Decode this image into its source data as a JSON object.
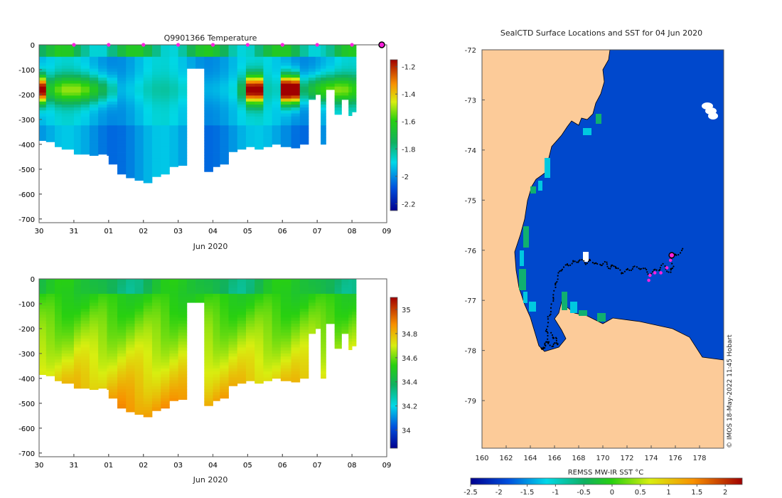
{
  "chart_data": [
    {
      "type": "heatmap",
      "title": "Q9901366  Temperature",
      "xlabel": "Jun 2020",
      "ylabel": "",
      "x_ticks": [
        "30",
        "31",
        "01",
        "02",
        "03",
        "04",
        "05",
        "06",
        "07",
        "08",
        "09"
      ],
      "xlim": [
        0,
        10
      ],
      "y_ticks": [
        0,
        -100,
        -200,
        -300,
        -400,
        -500,
        -600,
        -700
      ],
      "ylim": [
        -715,
        0
      ],
      "profile_times": [
        0.0,
        0.2,
        0.45,
        0.65,
        1.0,
        1.2,
        1.45,
        1.7,
        1.95,
        2.0,
        2.25,
        2.5,
        2.75,
        3.0,
        3.25,
        3.5,
        3.75,
        4.0,
        4.25,
        4.5,
        4.75,
        5.0,
        5.2,
        5.45,
        5.7,
        5.95,
        6.2,
        6.45,
        6.7,
        6.95,
        7.25,
        7.5,
        7.75,
        7.95,
        8.1,
        8.25,
        8.5,
        8.7,
        8.9,
        9.0
      ],
      "profile_max_depths": [
        385,
        390,
        410,
        420,
        440,
        440,
        445,
        440,
        445,
        480,
        520,
        535,
        545,
        555,
        530,
        520,
        490,
        485,
        95,
        95,
        510,
        490,
        480,
        430,
        420,
        410,
        420,
        410,
        400,
        410,
        415,
        400,
        220,
        200,
        400,
        180,
        280,
        220,
        285,
        270
      ],
      "markers": [
        1,
        2,
        3,
        4,
        5,
        6,
        7,
        8,
        9
      ],
      "current_position": 10,
      "colorbar": {
        "ticks": [
          -1.2,
          -1.4,
          -1.6,
          -1.8,
          -2,
          -2.2
        ],
        "range": [
          -2.25,
          -1.15
        ]
      }
    },
    {
      "type": "heatmap",
      "title": "",
      "xlabel": "Jun 2020",
      "ylabel": "",
      "x_ticks": [
        "30",
        "31",
        "01",
        "02",
        "03",
        "04",
        "05",
        "06",
        "07",
        "08",
        "09"
      ],
      "xlim": [
        0,
        10
      ],
      "y_ticks": [
        0,
        -100,
        -200,
        -300,
        -400,
        -500,
        -600,
        -700
      ],
      "ylim": [
        -715,
        0
      ],
      "colorbar": {
        "ticks": [
          35,
          34.8,
          34.6,
          34.4,
          34.2,
          34
        ],
        "range": [
          33.85,
          35.1
        ]
      }
    },
    {
      "type": "heatmap",
      "title": "SealCTD Surface Locations and SST for 04 Jun 2020",
      "xlabel": "",
      "ylabel": "",
      "x_ticks": [
        160,
        162,
        164,
        166,
        168,
        170,
        172,
        174,
        176,
        178
      ],
      "xlim": [
        160,
        180
      ],
      "y_ticks": [
        -72,
        -73,
        -74,
        -75,
        -76,
        -77,
        -78,
        -79
      ],
      "ylim": [
        -79.95,
        -72
      ],
      "colorbar_label": "REMSS MW-IR SST °C",
      "colorbar_ticks": [
        -2.5,
        -2,
        -1.5,
        -1,
        -0.5,
        0,
        0.5,
        1,
        1.5,
        2
      ],
      "colorbar_range": [
        -2.5,
        2.3
      ],
      "track": [
        [
          176.6,
          -76.0
        ],
        [
          176.0,
          -76.1
        ],
        [
          175.6,
          -76.15
        ],
        [
          175.8,
          -76.3
        ],
        [
          175.6,
          -76.45
        ],
        [
          175.0,
          -76.3
        ],
        [
          174.5,
          -76.4
        ],
        [
          173.8,
          -76.45
        ],
        [
          173.2,
          -76.35
        ],
        [
          172.5,
          -76.35
        ],
        [
          172.0,
          -76.4
        ],
        [
          171.5,
          -76.45
        ],
        [
          171.0,
          -76.3
        ],
        [
          170.6,
          -76.35
        ],
        [
          170.2,
          -76.25
        ],
        [
          169.6,
          -76.3
        ],
        [
          169.0,
          -76.2
        ],
        [
          168.6,
          -76.25
        ],
        [
          168.0,
          -76.2
        ],
        [
          167.5,
          -76.25
        ],
        [
          167.0,
          -76.3
        ],
        [
          166.5,
          -76.4
        ],
        [
          166.2,
          -76.6
        ],
        [
          166.0,
          -76.8
        ],
        [
          165.8,
          -77.1
        ],
        [
          165.5,
          -77.35
        ],
        [
          165.3,
          -77.6
        ],
        [
          165.5,
          -77.8
        ],
        [
          165.2,
          -77.9
        ],
        [
          164.9,
          -78.0
        ],
        [
          165.3,
          -77.85
        ],
        [
          165.9,
          -77.9
        ],
        [
          166.3,
          -77.85
        ],
        [
          166.0,
          -77.75
        ],
        [
          165.6,
          -77.65
        ]
      ],
      "track_recent": [
        [
          175.6,
          -76.2
        ],
        [
          175.3,
          -76.35
        ],
        [
          174.8,
          -76.45
        ],
        [
          174.3,
          -76.45
        ],
        [
          173.9,
          -76.5
        ],
        [
          173.8,
          -76.6
        ]
      ],
      "current": [
        175.7,
        -76.1
      ],
      "label": "© IMOS 18-May-2022 11:45 Hobart"
    }
  ]
}
